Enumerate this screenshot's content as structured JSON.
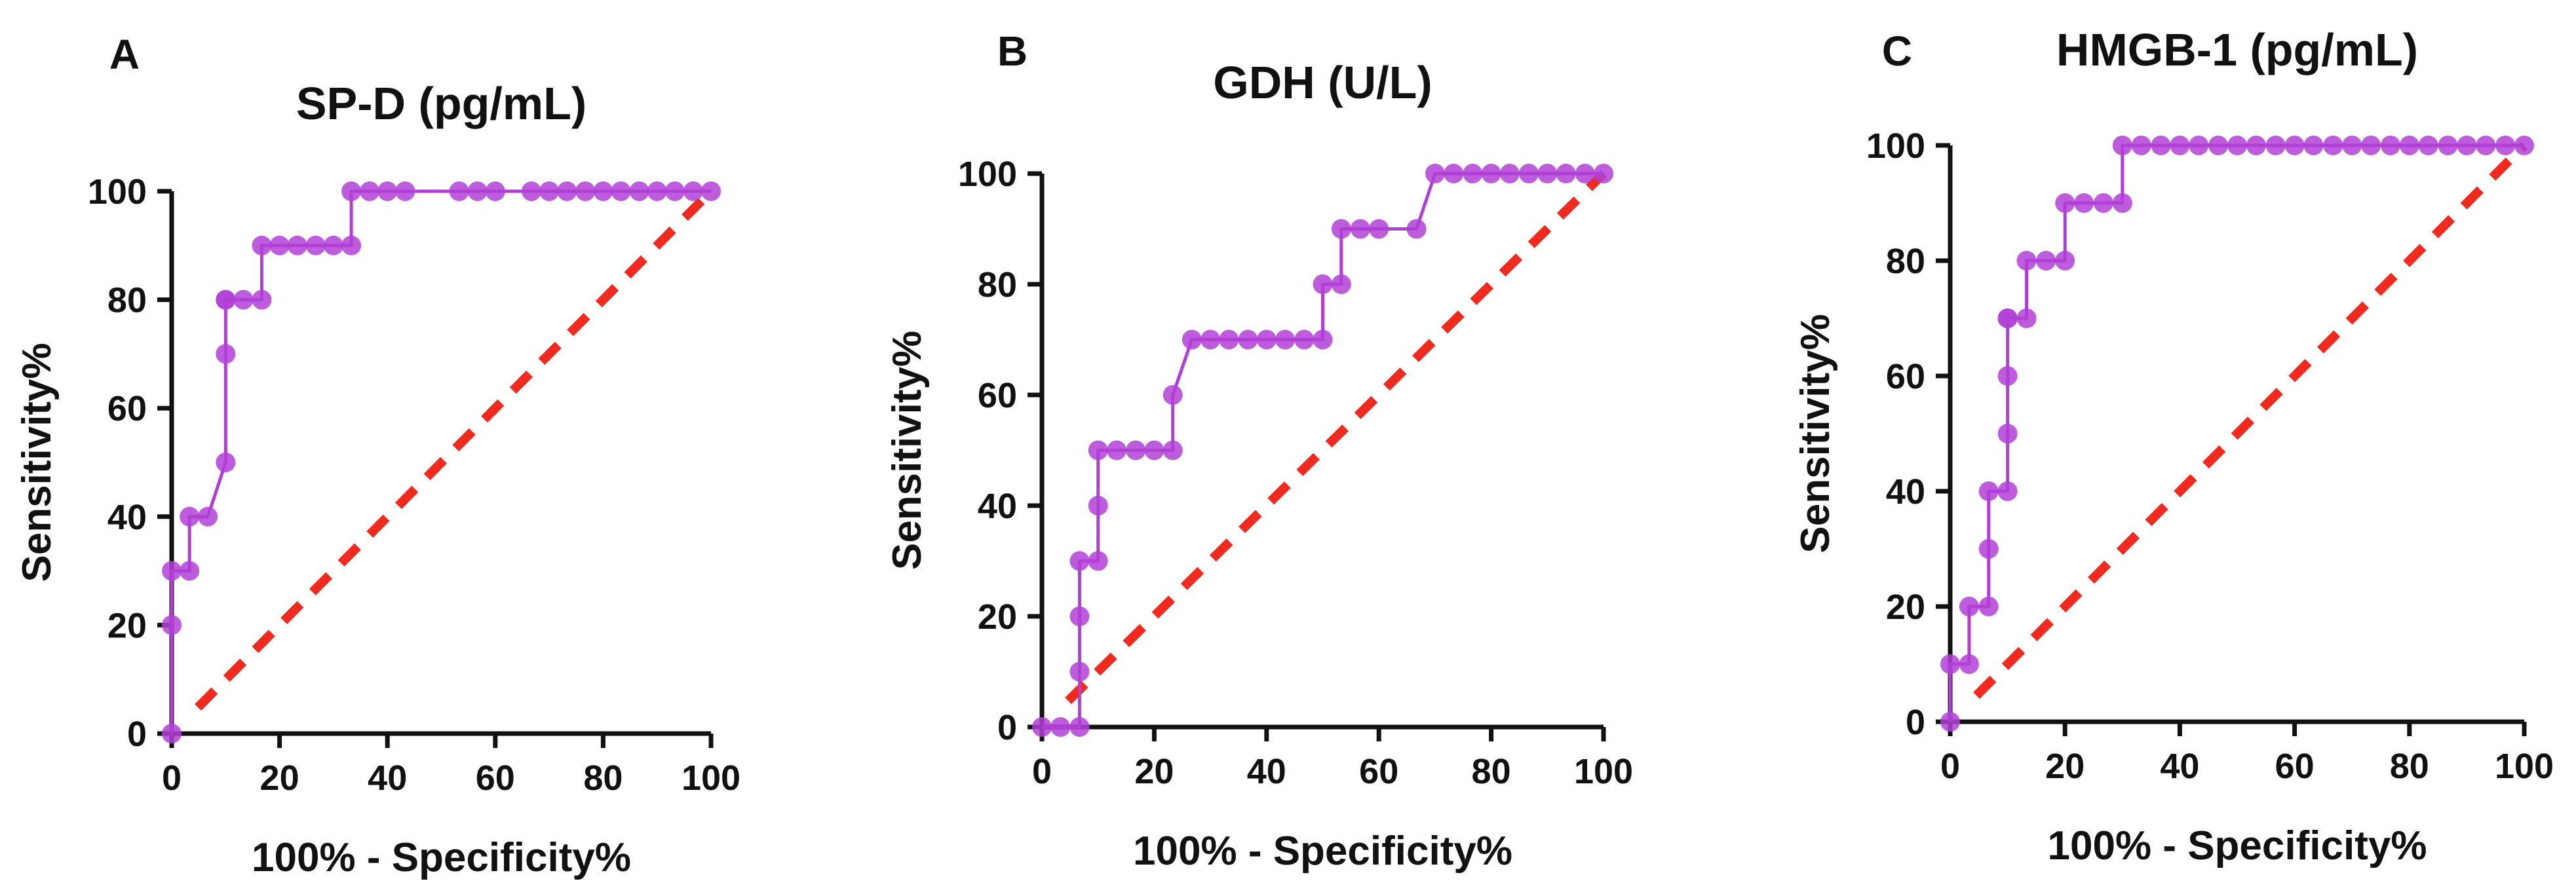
{
  "colors": {
    "roc": "#b13fd6",
    "reference": "#f02a1e",
    "axis": "#111111"
  },
  "chart_data": [
    {
      "panel": "A",
      "type": "line",
      "title": "SP-D (pg/mL)",
      "xlabel": "100% - Specificity%",
      "ylabel": "Sensitivity%",
      "xlim": [
        0,
        100
      ],
      "ylim": [
        0,
        100
      ],
      "xticks": [
        0,
        20,
        40,
        60,
        80,
        100
      ],
      "yticks": [
        0,
        20,
        40,
        60,
        80,
        100
      ],
      "series": [
        {
          "name": "ROC",
          "x": [
            0,
            0,
            0,
            3.3,
            3.3,
            6.7,
            10,
            10,
            10,
            10,
            13.3,
            16.7,
            16.7,
            20,
            23.3,
            26.7,
            30,
            33.3,
            33.3,
            36.7,
            40,
            43.3,
            53.3,
            56.7,
            60,
            66.7,
            70,
            73.3,
            76.7,
            80,
            83.3,
            86.7,
            90,
            93.3,
            96.7,
            100
          ],
          "y": [
            0,
            20,
            30,
            30,
            40,
            40,
            50,
            70,
            80,
            80,
            80,
            80,
            90,
            90,
            90,
            90,
            90,
            90,
            100,
            100,
            100,
            100,
            100,
            100,
            100,
            100,
            100,
            100,
            100,
            100,
            100,
            100,
            100,
            100,
            100,
            100
          ]
        },
        {
          "name": "Reference",
          "x": [
            0,
            100
          ],
          "y": [
            0,
            100
          ]
        }
      ]
    },
    {
      "panel": "B",
      "type": "line",
      "title": "GDH (U/L)",
      "xlabel": "100% - Specificity%",
      "ylabel": "Sensitivity%",
      "xlim": [
        0,
        100
      ],
      "ylim": [
        0,
        100
      ],
      "xticks": [
        0,
        20,
        40,
        60,
        80,
        100
      ],
      "yticks": [
        0,
        20,
        40,
        60,
        80,
        100
      ],
      "series": [
        {
          "name": "ROC",
          "x": [
            0,
            3.3,
            6.7,
            6.7,
            6.7,
            6.7,
            10,
            10,
            10,
            13.3,
            16.7,
            20,
            23.3,
            23.3,
            26.7,
            30,
            33.3,
            36.7,
            40,
            43.3,
            46.7,
            50,
            50,
            53.3,
            53.3,
            56.7,
            60,
            66.7,
            70,
            73.3,
            76.7,
            80,
            83.3,
            86.7,
            90,
            93.3,
            96.7,
            100
          ],
          "y": [
            0,
            0,
            0,
            10,
            20,
            30,
            30,
            40,
            50,
            50,
            50,
            50,
            50,
            60,
            70,
            70,
            70,
            70,
            70,
            70,
            70,
            70,
            80,
            80,
            90,
            90,
            90,
            90,
            100,
            100,
            100,
            100,
            100,
            100,
            100,
            100,
            100,
            100
          ]
        },
        {
          "name": "Reference",
          "x": [
            0,
            100
          ],
          "y": [
            0,
            100
          ]
        }
      ]
    },
    {
      "panel": "C",
      "type": "line",
      "title": "HMGB-1 (pg/mL)",
      "xlabel": "100% - Specificity%",
      "ylabel": "Sensitivity%",
      "xlim": [
        0,
        100
      ],
      "ylim": [
        0,
        100
      ],
      "xticks": [
        0,
        20,
        40,
        60,
        80,
        100
      ],
      "yticks": [
        0,
        20,
        40,
        60,
        80,
        100
      ],
      "series": [
        {
          "name": "ROC",
          "x": [
            0,
            0,
            3.3,
            3.3,
            6.7,
            6.7,
            6.7,
            10,
            10,
            10,
            10,
            10,
            13.3,
            13.3,
            16.7,
            20,
            20,
            23.3,
            26.7,
            30,
            30,
            33.3,
            36.7,
            40,
            43.3,
            46.7,
            50,
            53.3,
            56.7,
            60,
            63.3,
            66.7,
            70,
            73.3,
            76.7,
            80,
            83.3,
            86.7,
            90,
            93.3,
            96.7,
            100
          ],
          "y": [
            0,
            10,
            10,
            20,
            20,
            30,
            40,
            40,
            50,
            60,
            70,
            70,
            70,
            80,
            80,
            80,
            90,
            90,
            90,
            90,
            100,
            100,
            100,
            100,
            100,
            100,
            100,
            100,
            100,
            100,
            100,
            100,
            100,
            100,
            100,
            100,
            100,
            100,
            100,
            100,
            100,
            100
          ]
        },
        {
          "name": "Reference",
          "x": [
            0,
            100
          ],
          "y": [
            0,
            100
          ]
        }
      ]
    }
  ]
}
